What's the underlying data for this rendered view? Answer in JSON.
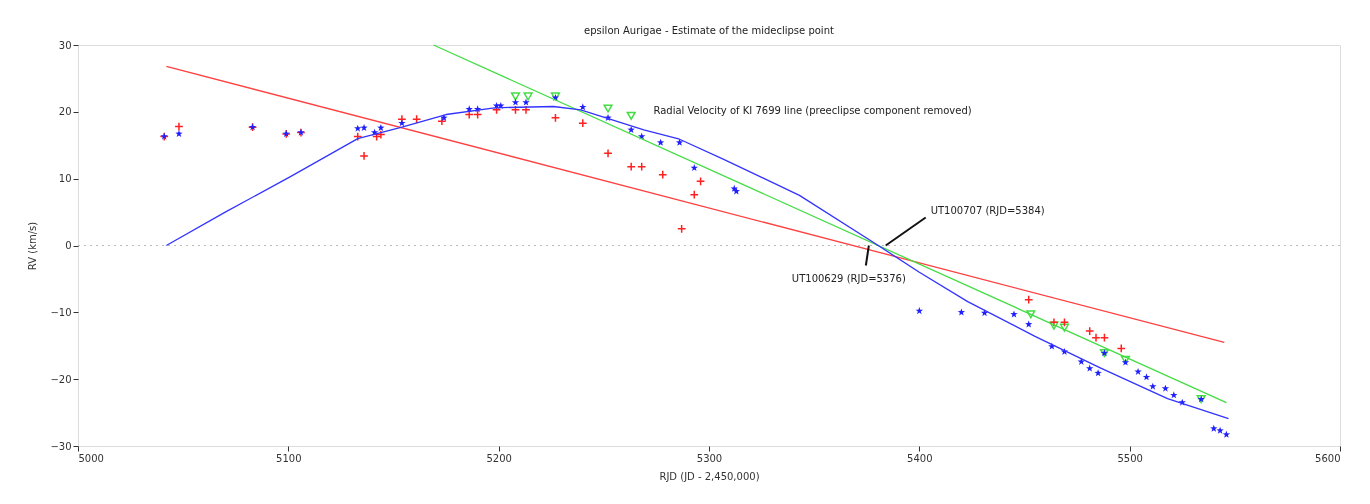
{
  "chart_data": {
    "type": "scatter",
    "title": "epsilon Aurigae - Estimate of the mideclipse point",
    "xlabel": "RJD (JD - 2,450,000)",
    "ylabel": "RV (km/s)",
    "xlim": [
      5000,
      5600
    ],
    "ylim": [
      -30,
      30
    ],
    "xticks": [
      5000,
      5100,
      5200,
      5300,
      5400,
      5500,
      5600
    ],
    "yticks": [
      -30,
      -20,
      -10,
      0,
      10,
      20,
      30
    ],
    "grid": false,
    "annotations": [
      "Radial Velocity of KI 7699 line (preeclipse component removed)",
      {
        "text": "UT100707 (RJD=5384)",
        "x": 5384,
        "y": 0
      },
      {
        "text": "UT100629 (RJD=5376)",
        "x": 5376,
        "y": 0
      }
    ],
    "ref_lines": [
      {
        "axis": "y",
        "value": 0,
        "color": "#bbbbbb",
        "line_style": "dotted"
      }
    ],
    "series": [
      {
        "marker": "triangle",
        "color": "#44dd44",
        "x": [
          5208,
          5214,
          5227,
          5252,
          5263,
          5453,
          5464,
          5469,
          5488,
          5498,
          5534
        ],
        "values": [
          22.3,
          22.3,
          22.3,
          20.5,
          19.4,
          -10.3,
          -12,
          -12.3,
          -16.1,
          -17.1,
          -23
        ]
      },
      {
        "marker": "cross",
        "color": "#ff2020",
        "x": [
          5041,
          5048,
          5083,
          5099,
          5106,
          5133,
          5136,
          5142,
          5144,
          5154,
          5161,
          5173,
          5186,
          5190,
          5199,
          5208,
          5213,
          5227,
          5240,
          5252,
          5263,
          5268,
          5278,
          5287,
          5293,
          5296,
          5452,
          5464,
          5469,
          5481,
          5484,
          5488,
          5496
        ],
        "values": [
          16.3,
          17.8,
          17.7,
          16.7,
          16.9,
          16.3,
          13.4,
          16.3,
          16.6,
          18.9,
          18.9,
          18.6,
          19.6,
          19.6,
          20.3,
          20.3,
          20.3,
          19.1,
          18.3,
          13.8,
          11.8,
          11.8,
          10.6,
          2.5,
          7.6,
          9.6,
          -8.1,
          -11.5,
          -11.5,
          -12.8,
          -13.8,
          -13.8,
          -15.4
        ]
      },
      {
        "marker": "star",
        "color": "#2020ff",
        "x": [
          5041,
          5048,
          5083,
          5099,
          5106,
          5133,
          5136,
          5141,
          5144,
          5154,
          5174,
          5186,
          5190,
          5199,
          5201,
          5208,
          5213,
          5227,
          5240,
          5252,
          5263,
          5268,
          5277,
          5286,
          5293,
          5312,
          5313,
          5400,
          5420,
          5431,
          5445,
          5452,
          5463,
          5469,
          5477,
          5481,
          5485,
          5488,
          5498,
          5504,
          5508,
          5511,
          5517,
          5521,
          5525,
          5534,
          5540,
          5543,
          5546
        ],
        "values": [
          16.3,
          16.7,
          17.7,
          16.7,
          16.9,
          17.5,
          17.6,
          16.9,
          17.6,
          18.3,
          19.1,
          20.4,
          20.4,
          20.9,
          20.9,
          21.4,
          21.4,
          22.1,
          20.7,
          19.1,
          17.3,
          16.3,
          15.4,
          15.4,
          11.6,
          8.5,
          8.1,
          -9.8,
          -10,
          -10.1,
          -10.3,
          -11.8,
          -15.1,
          -15.9,
          -17.4,
          -18.4,
          -19.1,
          -16.1,
          -17.5,
          -18.9,
          -19.7,
          -21.1,
          -21.4,
          -22.4,
          -23.5,
          -23,
          -27.4,
          -27.7,
          -28.3
        ]
      },
      {
        "type": "line",
        "color": "#ff4040",
        "x": [
          5042,
          5545
        ],
        "values": [
          26.8,
          -14.5
        ]
      },
      {
        "type": "line",
        "color": "#44dd44",
        "x": [
          5169,
          5546
        ],
        "values": [
          30,
          -23.5
        ]
      },
      {
        "type": "line",
        "color": "#3333ff",
        "x": [
          5042,
          5070,
          5101,
          5133,
          5154,
          5175,
          5198,
          5226,
          5239,
          5269,
          5286,
          5307,
          5343,
          5379,
          5400,
          5423,
          5455,
          5486,
          5518,
          5547
        ],
        "values": [
          0,
          5,
          10.3,
          16,
          17.7,
          19.6,
          20.6,
          20.8,
          20.3,
          17.3,
          15.9,
          12.9,
          7.5,
          0.3,
          -4,
          -8.4,
          -13.6,
          -18.3,
          -22.9,
          -25.9
        ]
      }
    ]
  }
}
